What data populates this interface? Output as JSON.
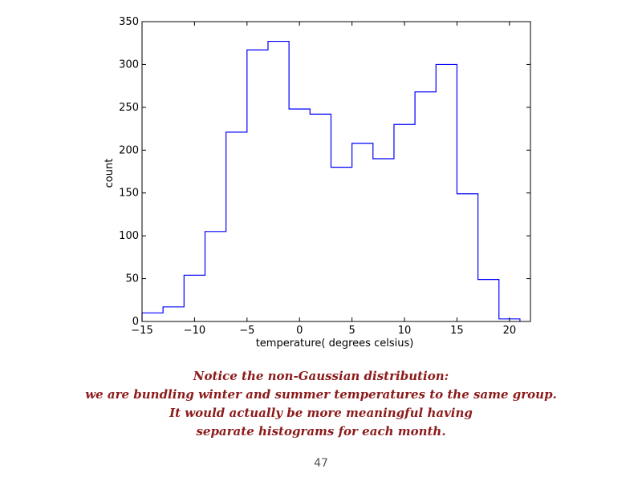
{
  "chart_data": {
    "type": "histogram",
    "bin_edges": [
      -15,
      -13,
      -11,
      -9,
      -7,
      -5,
      -3,
      -1,
      1,
      3,
      5,
      7,
      9,
      11,
      13,
      15,
      17,
      19,
      21
    ],
    "values": [
      10,
      17,
      54,
      105,
      221,
      317,
      327,
      248,
      242,
      180,
      208,
      190,
      230,
      268,
      300,
      149,
      49,
      3
    ],
    "xlabel": "temperature( degrees celsius)",
    "ylabel": "count",
    "xlim": [
      -15,
      22
    ],
    "ylim": [
      0,
      350
    ],
    "xticks": [
      -15,
      -10,
      -5,
      0,
      5,
      10,
      15,
      20
    ],
    "yticks": [
      0,
      50,
      100,
      150,
      200,
      250,
      300,
      350
    ],
    "xtick_labels": [
      "−15",
      "−10",
      "−5",
      "0",
      "5",
      "10",
      "15",
      "20"
    ],
    "ytick_labels": [
      "0",
      "50",
      "100",
      "150",
      "200",
      "250",
      "300",
      "350"
    ],
    "histtype": "step",
    "line_color": "#0000ff",
    "grid": false
  },
  "caption": {
    "lines": [
      "Notice the non-Gaussian distribution:",
      "we are bundling winter and summer temperatures to the same group.",
      "It would actually be more meaningful having",
      "separate histograms for each month."
    ],
    "color": "#8b1a1a"
  },
  "page_number": "47"
}
